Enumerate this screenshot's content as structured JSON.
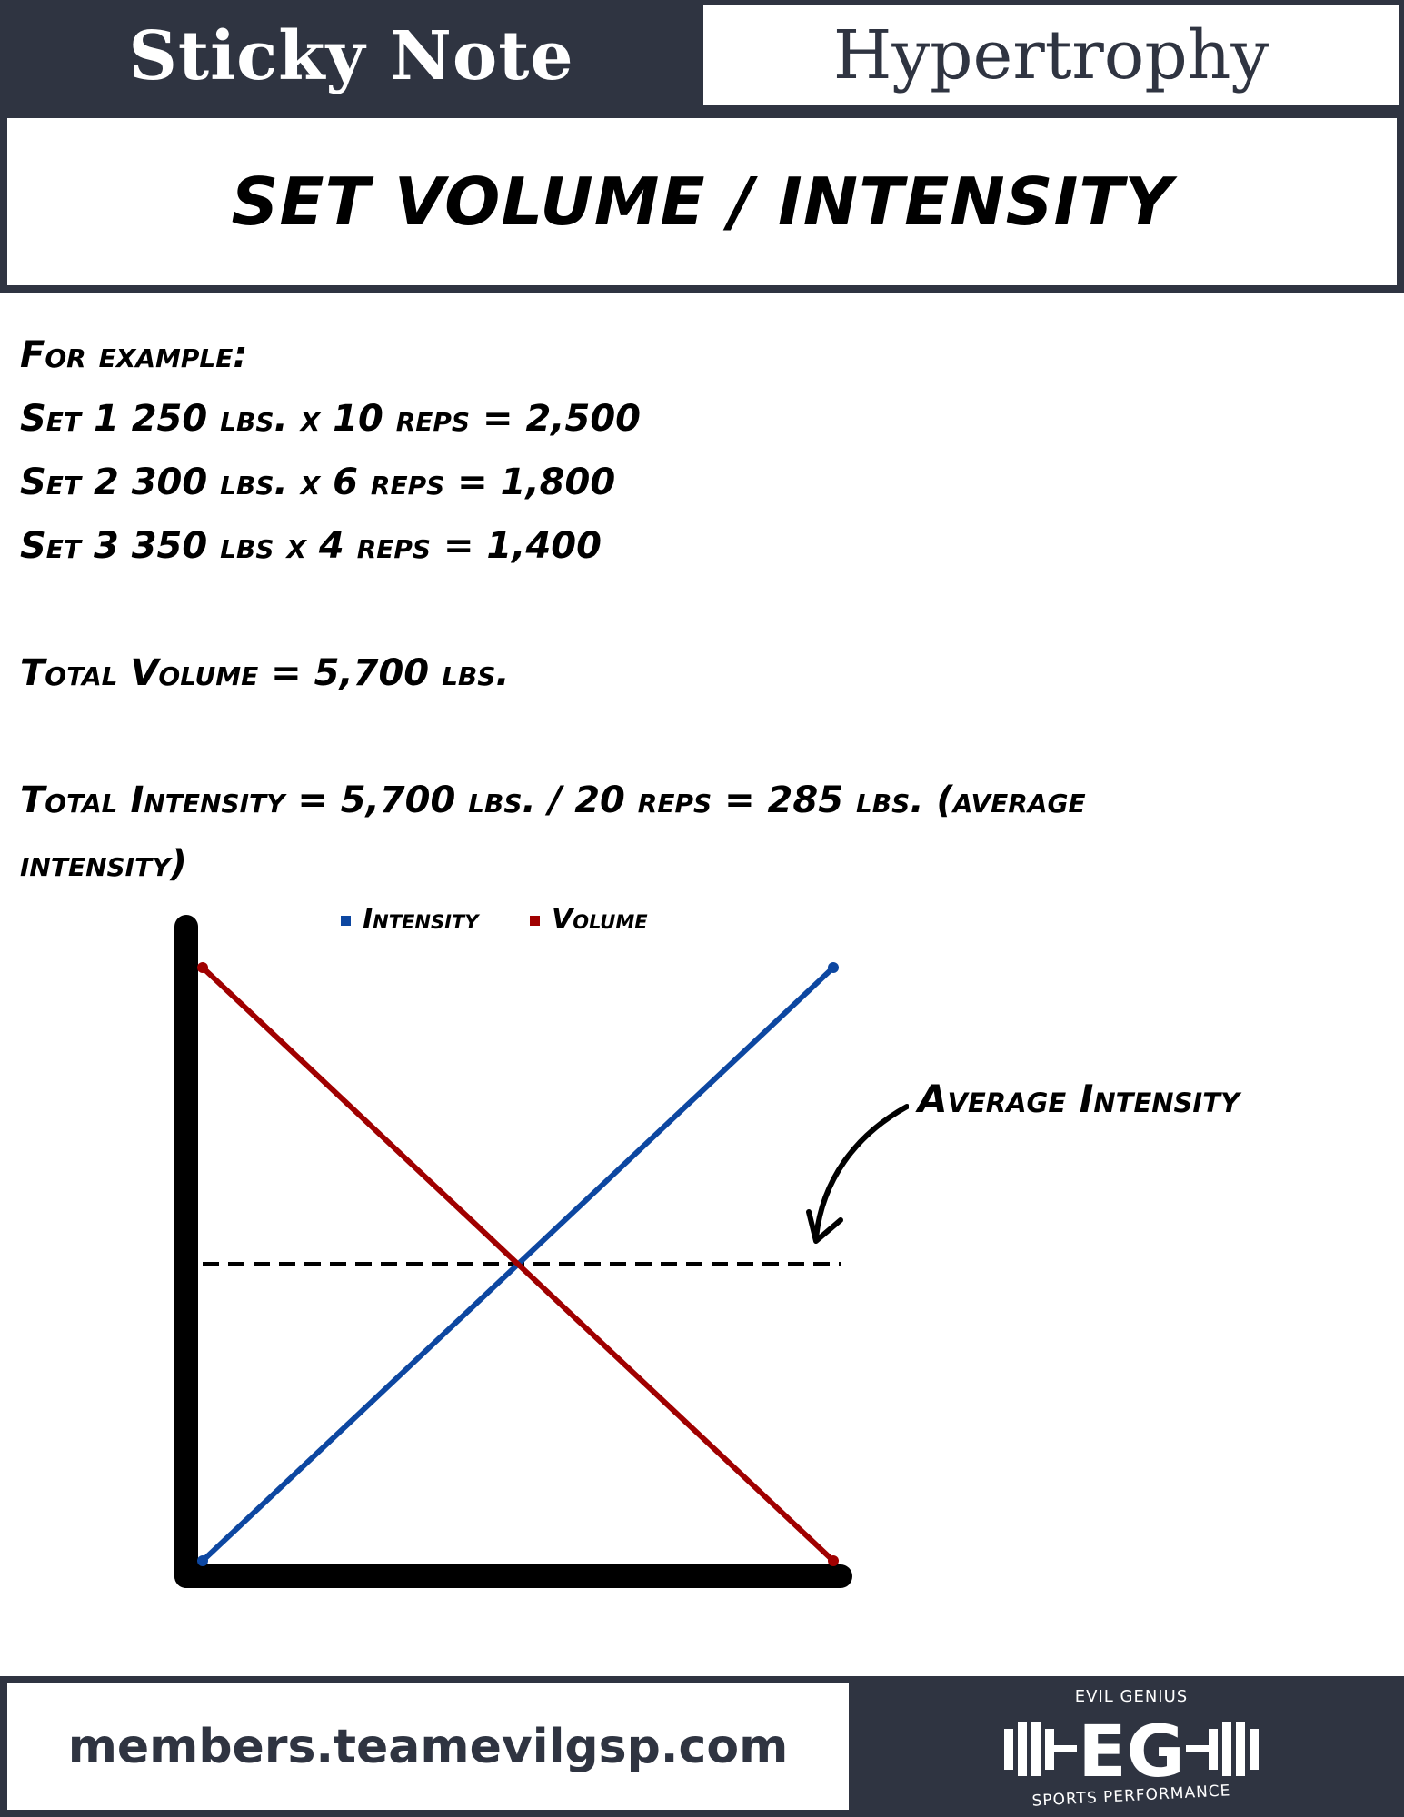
{
  "header": {
    "left_title": "Sticky Note",
    "right_title": "Hypertrophy"
  },
  "title": "SET VOLUME / INTENSITY",
  "body_lines": [
    "For example:",
    "Set 1 250 lbs. x 10 reps = 2,500",
    "Set 2 300 lbs. x 6 reps = 1,800",
    "Set 3 350 lbs x 4 reps = 1,400",
    "",
    "Total Volume = 5,700 lbs.",
    "",
    "Total Intensity = 5,700 lbs. / 20 reps = 285 lbs. (average",
    "intensity)"
  ],
  "chart_data": {
    "type": "line",
    "title": "",
    "xlabel": "",
    "ylabel": "",
    "x": [
      0,
      1
    ],
    "series": [
      {
        "name": "Intensity",
        "values": [
          0,
          1
        ],
        "color": "#0d47a1"
      },
      {
        "name": "Volume",
        "values": [
          1,
          0
        ],
        "color": "#a00000"
      }
    ],
    "reference_line": {
      "label": "Average Intensity",
      "value": 0.5,
      "style": "dashed"
    },
    "xlim": [
      0,
      1
    ],
    "ylim": [
      0,
      1
    ],
    "legend": "top",
    "grid": false,
    "axis_color": "#000000"
  },
  "footer": {
    "url": "members.teamevilgsp.com",
    "logo_top": "EVIL GENIUS",
    "logo_mark": "EG",
    "logo_bottom": "SPORTS PERFORMANCE"
  }
}
